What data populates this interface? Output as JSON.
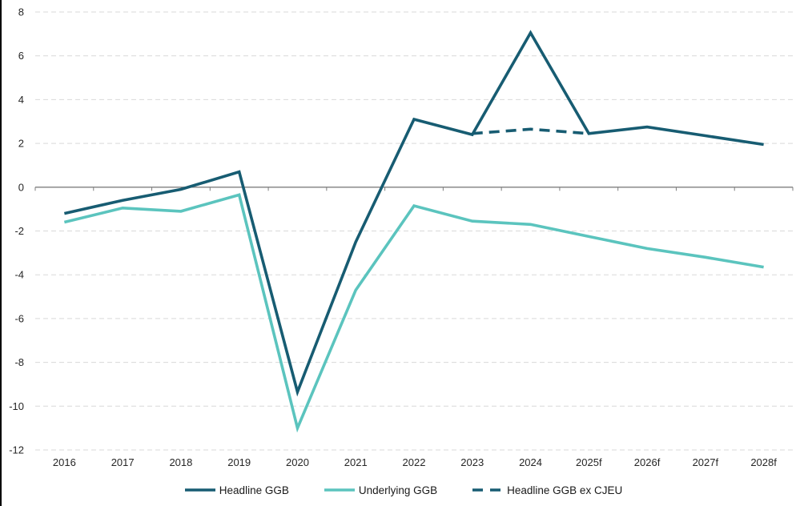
{
  "chart_data": {
    "type": "line",
    "categories": [
      "2016",
      "2017",
      "2018",
      "2019",
      "2020",
      "2021",
      "2022",
      "2023",
      "2024",
      "2025f",
      "2026f",
      "2027f",
      "2028f"
    ],
    "series": [
      {
        "name": "Headline GGB",
        "color": "#175c72",
        "style": "solid",
        "values": [
          -1.2,
          -0.6,
          -0.1,
          0.7,
          -9.35,
          -2.5,
          3.1,
          2.4,
          7.05,
          2.45,
          2.75,
          2.35,
          1.95
        ]
      },
      {
        "name": "Underlying GGB",
        "color": "#5bc4be",
        "style": "solid",
        "values": [
          -1.6,
          -0.95,
          -1.1,
          -0.35,
          -11.0,
          -4.7,
          -0.85,
          -1.55,
          -1.7,
          -2.25,
          -2.8,
          -3.2,
          -3.65
        ]
      },
      {
        "name": "Headline GGB ex CJEU",
        "color": "#175c72",
        "style": "dashed",
        "values": [
          null,
          null,
          null,
          null,
          null,
          null,
          null,
          2.45,
          2.65,
          2.45,
          null,
          null,
          null
        ]
      }
    ],
    "yticks": [
      8,
      6,
      4,
      2,
      0,
      -2,
      -4,
      -6,
      -8,
      -10,
      -12
    ],
    "ylim": [
      -12,
      8
    ],
    "title": "",
    "xlabel": "",
    "ylabel": "",
    "grid": "horizontal-dashed",
    "legend_position": "bottom",
    "axis_color": "#7f7f7f",
    "gridline_color": "#d9d9d9",
    "text_color": "#262626"
  }
}
